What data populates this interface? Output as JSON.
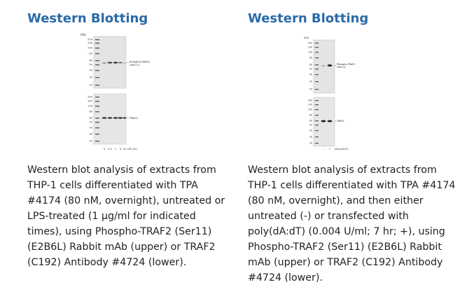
{
  "panels": [
    {
      "heading": "Western Blotting",
      "caption": "Western blot analysis of extracts from THP-1 cells differentiated with TPA #4174 (80 nM, overnight), untreated or LPS-treated (1 µg/ml for indicated times), using Phospho-TRAF2 (Ser11) (E2B6L) Rabbit mAb (upper) or TRAF2 (C192) Antibody #4724 (lower).",
      "blot": {
        "kda_label": "kDa",
        "upper_markers": [
          "200",
          "140",
          "100",
          "80",
          "60",
          "50",
          "40",
          "30",
          "20"
        ],
        "lower_markers": [
          "200",
          "140",
          "100",
          "80",
          "60",
          "50",
          "40",
          "30",
          "20"
        ],
        "upper_band_label_line1": "Phospho-TRAF2",
        "upper_band_label_line2": "(Ser11)",
        "lower_band_label": "TRAF2",
        "lane_labels": [
          "0",
          "0.5",
          "1",
          "6",
          "24"
        ],
        "axis_label": "LPS (hr)"
      }
    },
    {
      "heading": "Western Blotting",
      "caption": "Western blot analysis of extracts from THP-1 cells differentiated with TPA #4174 (80 nM, overnight), and then either untreated (-) or transfected with poly(dA:dT) (0.004 U/ml; 7 hr; +), using Phospho-TRAF2 (Ser11) (E2B6L) Rabbit mAb (upper) or TRAF2 (C192) Antibody #4724 (lower).",
      "blot": {
        "kda_label": "kDa",
        "upper_markers": [
          "200",
          "140",
          "100",
          "80",
          "60",
          "50",
          "40",
          "30",
          "20"
        ],
        "lower_markers": [
          "200",
          "140",
          "100",
          "80",
          "60",
          "50",
          "40",
          "30",
          "20"
        ],
        "upper_band_label_line1": "Phospho-TRAF2",
        "upper_band_label_line2": "(Ser11)",
        "lower_band_label": "TRAF2",
        "lane_labels": [
          "–",
          "+"
        ],
        "axis_label": "poly(dA:dT)"
      }
    }
  ]
}
